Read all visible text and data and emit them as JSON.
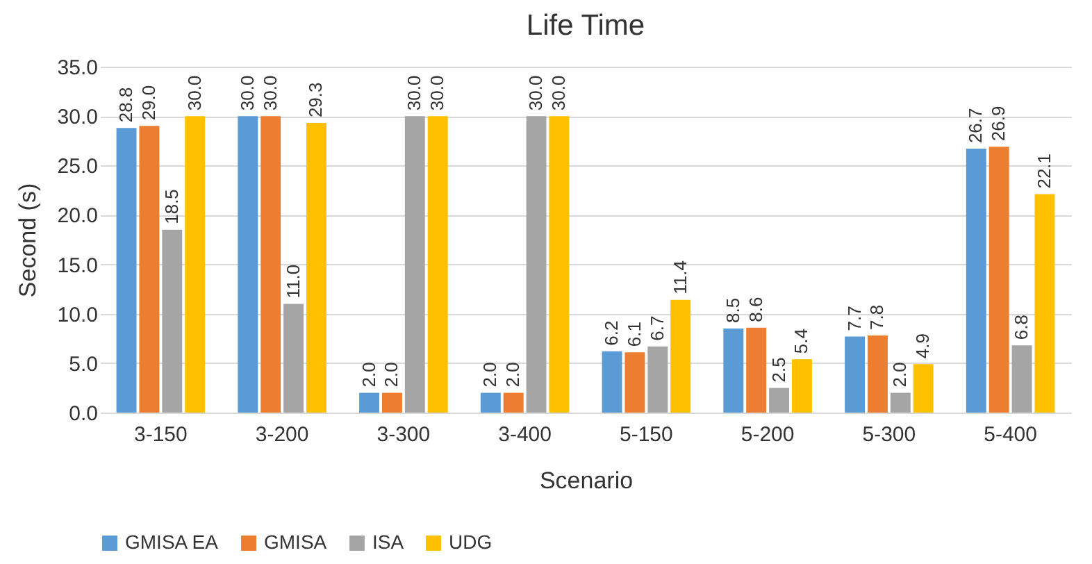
{
  "chart_data": {
    "type": "bar",
    "title": "Life Time",
    "xlabel": "Scenario",
    "ylabel": "Second (s)",
    "categories": [
      "3-150",
      "3-200",
      "3-300",
      "3-400",
      "5-150",
      "5-200",
      "5-300",
      "5-400"
    ],
    "series": [
      {
        "name": "GMISA EA",
        "color": "#5b9bd5",
        "values": [
          28.8,
          30.0,
          2.0,
          2.0,
          6.2,
          8.5,
          7.7,
          26.7
        ],
        "value_labels": [
          "28.8",
          "30.0",
          "2.0",
          "2.0",
          "6.2",
          "8.5",
          "7.7",
          "26.7"
        ]
      },
      {
        "name": "GMISA",
        "color": "#ed7d31",
        "values": [
          29.0,
          30.0,
          2.0,
          2.0,
          6.1,
          8.6,
          7.8,
          26.9
        ],
        "value_labels": [
          "29.0",
          "30.0",
          "2.0",
          "2.0",
          "6.1",
          "8.6",
          "7.8",
          "26.9"
        ]
      },
      {
        "name": "ISA",
        "color": "#a5a5a5",
        "values": [
          18.5,
          11.0,
          30.0,
          30.0,
          6.7,
          2.5,
          2.0,
          6.8
        ],
        "value_labels": [
          "18.5",
          "11.0",
          "30.0",
          "30.0",
          "6.7",
          "2.5",
          "2.0",
          "6.8"
        ]
      },
      {
        "name": "UDG",
        "color": "#ffc000",
        "values": [
          30.0,
          29.3,
          30.0,
          30.0,
          11.4,
          5.4,
          4.9,
          22.1
        ],
        "value_labels": [
          "30.0",
          "29.3",
          "30.0",
          "30.0",
          "11.4",
          "5.4",
          "4.9",
          "22.1"
        ]
      }
    ],
    "ylim": [
      0,
      35
    ],
    "yticks": [
      {
        "value": 0,
        "label": "0.0"
      },
      {
        "value": 5,
        "label": "5.0"
      },
      {
        "value": 10,
        "label": "10.0"
      },
      {
        "value": 15,
        "label": "15.0"
      },
      {
        "value": 20,
        "label": "20.0"
      },
      {
        "value": 25,
        "label": "25.0"
      },
      {
        "value": 30,
        "label": "30.0"
      },
      {
        "value": 35,
        "label": "35.0"
      }
    ],
    "grid": "y",
    "legend": "bottom"
  }
}
